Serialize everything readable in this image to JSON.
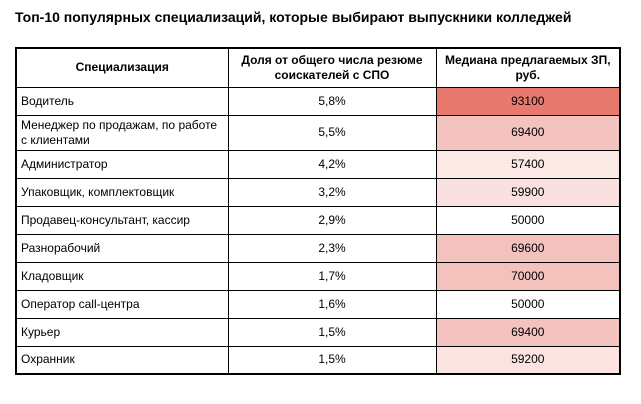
{
  "title": "Топ-10 популярных специализаций, которые выбирают выпускники колледжей",
  "chart_data": {
    "type": "table",
    "title": "Топ-10 популярных специализаций, которые выбирают выпускники колледжей",
    "columns": [
      "Специализация",
      "Доля от общего числа резюме соискателей с СПО",
      "Медиана предлагаемых ЗП, руб."
    ],
    "rows": [
      {
        "label": "Водитель",
        "share": "5,8%",
        "salary": "93100",
        "salary_value": 93100,
        "share_value": 5.8,
        "salary_color": "#E8796F"
      },
      {
        "label": "Менеджер по продажам, по работе с клиентами",
        "share": "5,5%",
        "salary": "69400",
        "salary_value": 69400,
        "share_value": 5.5,
        "salary_color": "#F5C3BF"
      },
      {
        "label": "Администратор",
        "share": "4,2%",
        "salary": "57400",
        "salary_value": 57400,
        "share_value": 4.2,
        "salary_color": "#FBE9E6"
      },
      {
        "label": "Упаковщик, комплектовщик",
        "share": "3,2%",
        "salary": "59900",
        "salary_value": 59900,
        "share_value": 3.2,
        "salary_color": "#FAE0DE"
      },
      {
        "label": "Продавец-консультант, кассир",
        "share": "2,9%",
        "salary": "50000",
        "salary_value": 50000,
        "share_value": 2.9,
        "salary_color": "#FFFFFF"
      },
      {
        "label": "Разнорабочий",
        "share": "2,3%",
        "salary": "69600",
        "salary_value": 69600,
        "share_value": 2.3,
        "salary_color": "#F4C2BE"
      },
      {
        "label": "Кладовщик",
        "share": "1,7%",
        "salary": "70000",
        "salary_value": 70000,
        "share_value": 1.7,
        "salary_color": "#F4C1BD"
      },
      {
        "label": "Оператор call-центра",
        "share": "1,6%",
        "salary": "50000",
        "salary_value": 50000,
        "share_value": 1.6,
        "salary_color": "#FFFFFF"
      },
      {
        "label": "Курьер",
        "share": "1,5%",
        "salary": "69400",
        "salary_value": 69400,
        "share_value": 1.5,
        "salary_color": "#F5C3BF"
      },
      {
        "label": "Охранник",
        "share": "1,5%",
        "salary": "59200",
        "salary_value": 59200,
        "share_value": 1.5,
        "salary_color": "#FAE3E0"
      }
    ],
    "heatmap": {
      "applies_to_column": "Медиана предлагаемых ЗП, руб.",
      "min_value": 50000,
      "max_value": 93100,
      "min_color": "#FFFFFF",
      "max_color": "#E8796F"
    },
    "layout": {
      "border_color": "#000000",
      "text_color": "#000000",
      "background": "#FFFFFF"
    }
  }
}
